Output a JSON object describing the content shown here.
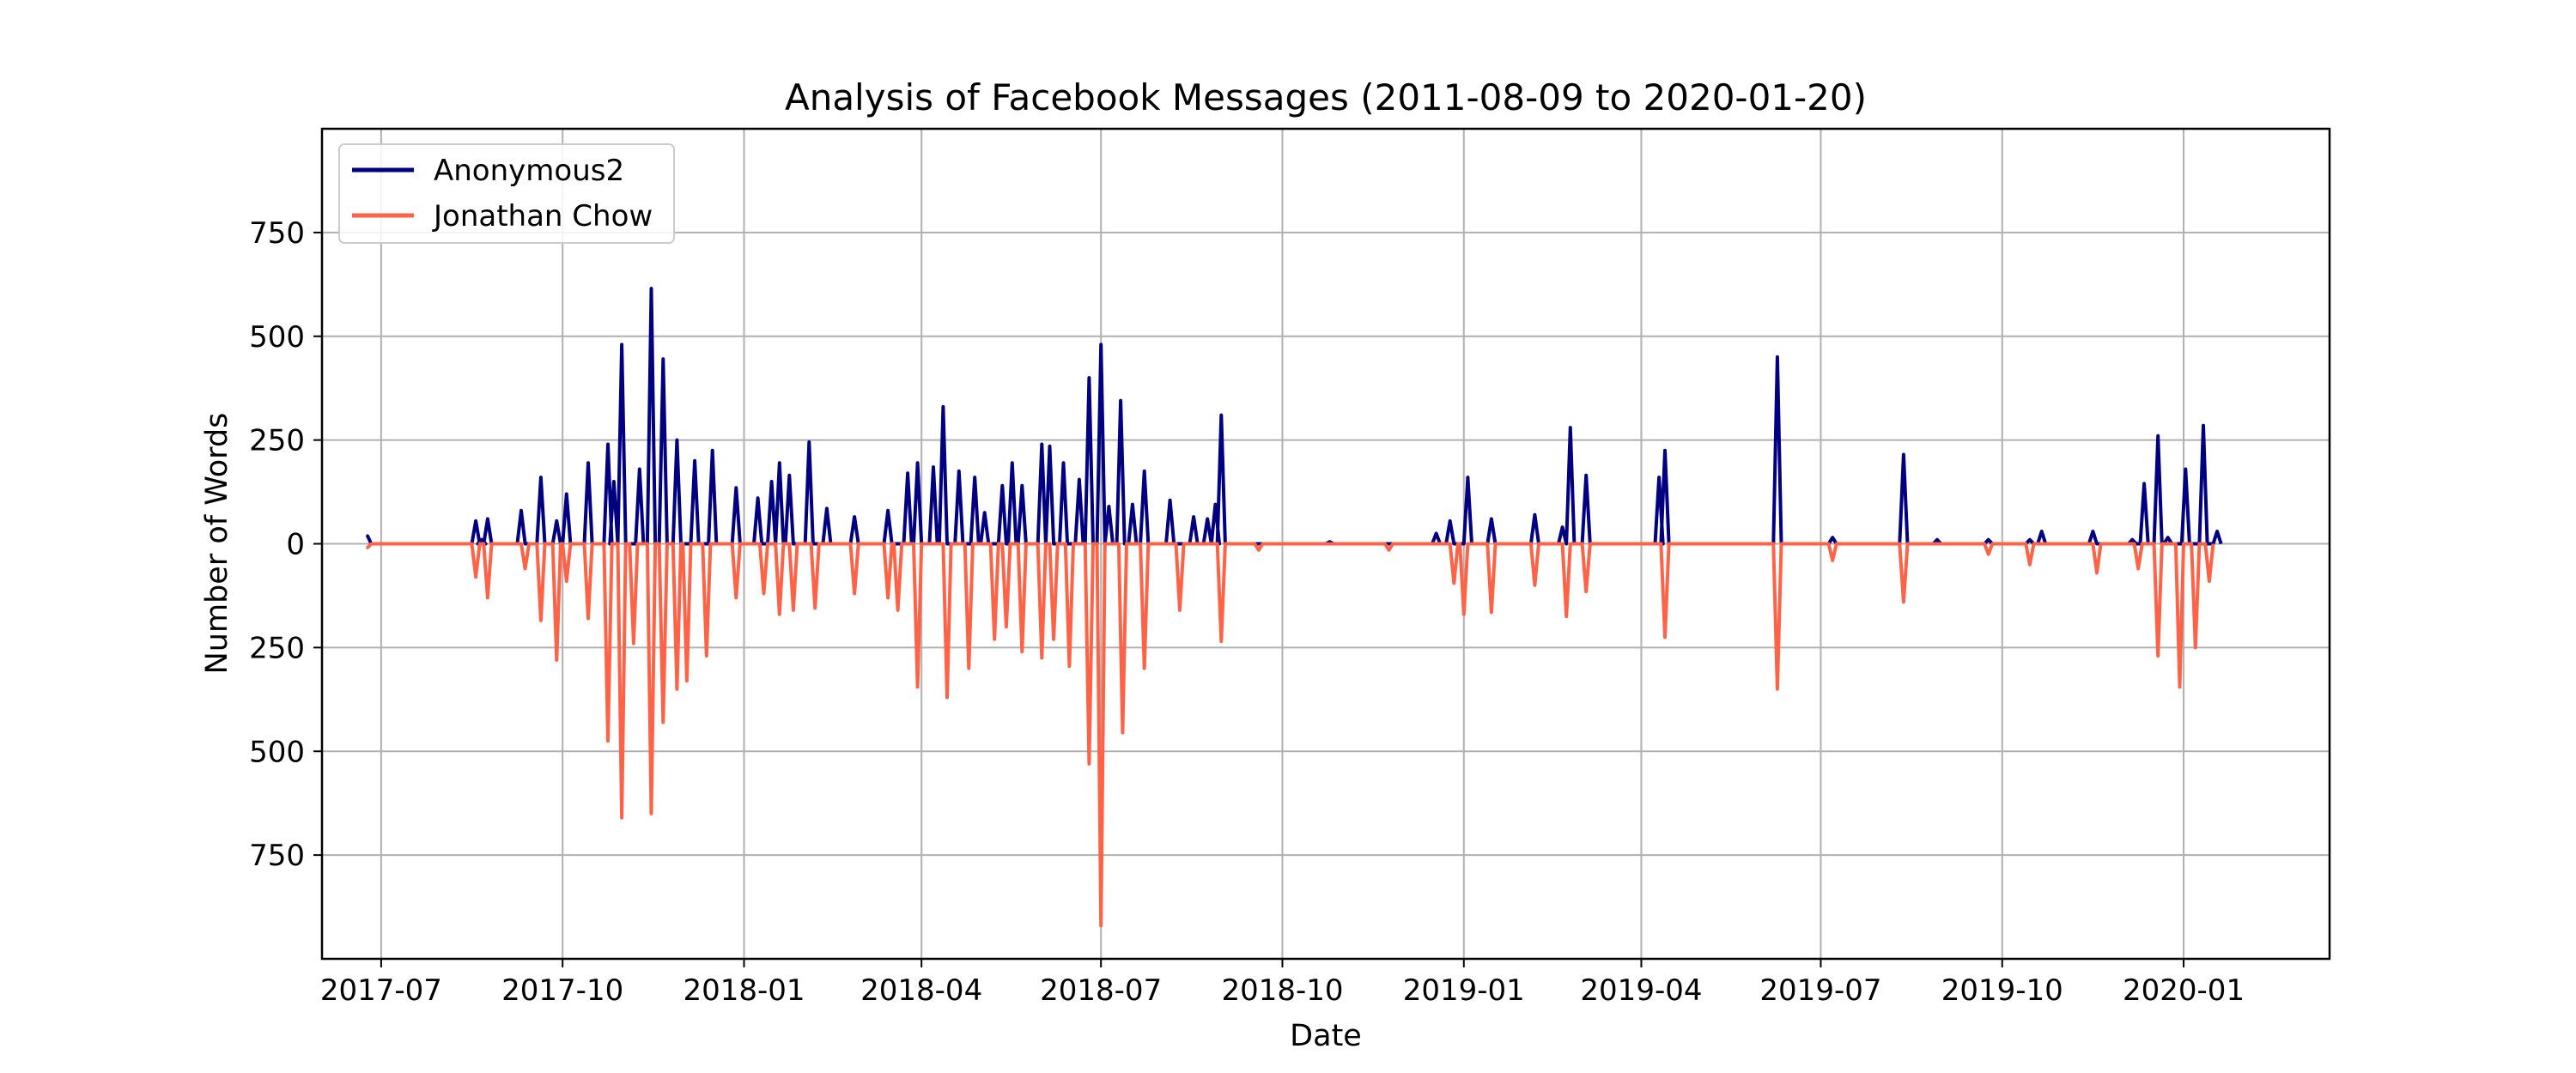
{
  "chart_data": {
    "type": "line",
    "title": "Analysis of Facebook Messages (2011-08-09 to 2020-01-20)",
    "xlabel": "Date",
    "ylabel": "Number of Words",
    "x_ticks": [
      "2017-07",
      "2017-10",
      "2018-01",
      "2018-04",
      "2018-07",
      "2018-10",
      "2019-01",
      "2019-04",
      "2019-07",
      "2019-10",
      "2020-01"
    ],
    "y_ticks": [
      {
        "value": 750,
        "label": "750"
      },
      {
        "value": 500,
        "label": "500"
      },
      {
        "value": 250,
        "label": "250"
      },
      {
        "value": 0,
        "label": "0"
      },
      {
        "value": -250,
        "label": "250"
      },
      {
        "value": -500,
        "label": "500"
      },
      {
        "value": -750,
        "label": "750"
      }
    ],
    "xlim": [
      "2017-06-01",
      "2020-03-15"
    ],
    "ylim": [
      -1000,
      1000
    ],
    "grid": true,
    "legend_position": "top-left",
    "series": [
      {
        "name": "Anonymous2",
        "color": "#000080",
        "points": [
          [
            "2017-06-24",
            20
          ],
          [
            "2017-08-18",
            55
          ],
          [
            "2017-08-21",
            10
          ],
          [
            "2017-08-24",
            60
          ],
          [
            "2017-09-10",
            80
          ],
          [
            "2017-09-20",
            160
          ],
          [
            "2017-09-28",
            55
          ],
          [
            "2017-10-03",
            120
          ],
          [
            "2017-10-14",
            195
          ],
          [
            "2017-10-24",
            240
          ],
          [
            "2017-10-27",
            150
          ],
          [
            "2017-10-31",
            480
          ],
          [
            "2017-11-09",
            180
          ],
          [
            "2017-11-15",
            615
          ],
          [
            "2017-11-21",
            445
          ],
          [
            "2017-11-28",
            250
          ],
          [
            "2017-12-07",
            200
          ],
          [
            "2017-12-16",
            225
          ],
          [
            "2017-12-28",
            135
          ],
          [
            "2018-01-08",
            110
          ],
          [
            "2018-01-15",
            150
          ],
          [
            "2018-01-19",
            195
          ],
          [
            "2018-01-24",
            165
          ],
          [
            "2018-02-03",
            245
          ],
          [
            "2018-02-12",
            85
          ],
          [
            "2018-02-26",
            65
          ],
          [
            "2018-03-15",
            80
          ],
          [
            "2018-03-25",
            170
          ],
          [
            "2018-03-30",
            195
          ],
          [
            "2018-04-07",
            185
          ],
          [
            "2018-04-12",
            330
          ],
          [
            "2018-04-20",
            175
          ],
          [
            "2018-04-28",
            160
          ],
          [
            "2018-05-03",
            75
          ],
          [
            "2018-05-12",
            140
          ],
          [
            "2018-05-17",
            195
          ],
          [
            "2018-05-22",
            140
          ],
          [
            "2018-06-01",
            240
          ],
          [
            "2018-06-05",
            235
          ],
          [
            "2018-06-12",
            195
          ],
          [
            "2018-06-20",
            155
          ],
          [
            "2018-06-25",
            400
          ],
          [
            "2018-07-01",
            480
          ],
          [
            "2018-07-05",
            90
          ],
          [
            "2018-07-11",
            345
          ],
          [
            "2018-07-17",
            95
          ],
          [
            "2018-07-23",
            175
          ],
          [
            "2018-08-05",
            105
          ],
          [
            "2018-08-17",
            65
          ],
          [
            "2018-08-24",
            60
          ],
          [
            "2018-08-28",
            95
          ],
          [
            "2018-08-31",
            310
          ],
          [
            "2018-10-25",
            5
          ],
          [
            "2018-12-18",
            25
          ],
          [
            "2018-12-25",
            55
          ],
          [
            "2019-01-03",
            160
          ],
          [
            "2019-01-15",
            60
          ],
          [
            "2019-02-06",
            70
          ],
          [
            "2019-02-20",
            40
          ],
          [
            "2019-02-24",
            280
          ],
          [
            "2019-03-04",
            165
          ],
          [
            "2019-04-10",
            160
          ],
          [
            "2019-04-13",
            225
          ],
          [
            "2019-06-09",
            450
          ],
          [
            "2019-07-07",
            15
          ],
          [
            "2019-08-12",
            215
          ],
          [
            "2019-08-29",
            10
          ],
          [
            "2019-09-24",
            10
          ],
          [
            "2019-10-15",
            10
          ],
          [
            "2019-10-21",
            30
          ],
          [
            "2019-11-16",
            30
          ],
          [
            "2019-12-06",
            10
          ],
          [
            "2019-12-12",
            145
          ],
          [
            "2019-12-19",
            260
          ],
          [
            "2019-12-24",
            15
          ],
          [
            "2020-01-02",
            180
          ],
          [
            "2020-01-11",
            285
          ],
          [
            "2020-01-18",
            30
          ]
        ]
      },
      {
        "name": "Jonathan Chow",
        "color": "#ff6347",
        "points": [
          [
            "2017-06-24",
            -10
          ],
          [
            "2017-08-18",
            -80
          ],
          [
            "2017-08-24",
            -130
          ],
          [
            "2017-09-12",
            -60
          ],
          [
            "2017-09-20",
            -185
          ],
          [
            "2017-09-28",
            -280
          ],
          [
            "2017-10-03",
            -90
          ],
          [
            "2017-10-14",
            -180
          ],
          [
            "2017-10-24",
            -475
          ],
          [
            "2017-10-31",
            -660
          ],
          [
            "2017-11-06",
            -240
          ],
          [
            "2017-11-15",
            -650
          ],
          [
            "2017-11-21",
            -430
          ],
          [
            "2017-11-28",
            -350
          ],
          [
            "2017-12-03",
            -330
          ],
          [
            "2017-12-13",
            -270
          ],
          [
            "2017-12-28",
            -130
          ],
          [
            "2018-01-11",
            -120
          ],
          [
            "2018-01-19",
            -170
          ],
          [
            "2018-01-26",
            -160
          ],
          [
            "2018-02-06",
            -155
          ],
          [
            "2018-02-26",
            -120
          ],
          [
            "2018-03-15",
            -130
          ],
          [
            "2018-03-20",
            -160
          ],
          [
            "2018-03-30",
            -345
          ],
          [
            "2018-04-14",
            -370
          ],
          [
            "2018-04-25",
            -300
          ],
          [
            "2018-05-08",
            -230
          ],
          [
            "2018-05-14",
            -200
          ],
          [
            "2018-05-22",
            -260
          ],
          [
            "2018-06-01",
            -275
          ],
          [
            "2018-06-07",
            -230
          ],
          [
            "2018-06-15",
            -295
          ],
          [
            "2018-06-25",
            -530
          ],
          [
            "2018-07-01",
            -920
          ],
          [
            "2018-07-12",
            -455
          ],
          [
            "2018-07-23",
            -300
          ],
          [
            "2018-08-10",
            -160
          ],
          [
            "2018-08-31",
            -235
          ],
          [
            "2018-09-19",
            -15
          ],
          [
            "2018-11-24",
            -15
          ],
          [
            "2018-12-27",
            -95
          ],
          [
            "2019-01-01",
            -170
          ],
          [
            "2019-01-15",
            -165
          ],
          [
            "2019-02-06",
            -100
          ],
          [
            "2019-02-22",
            -175
          ],
          [
            "2019-03-04",
            -115
          ],
          [
            "2019-04-13",
            -225
          ],
          [
            "2019-06-09",
            -350
          ],
          [
            "2019-07-07",
            -40
          ],
          [
            "2019-08-12",
            -140
          ],
          [
            "2019-09-24",
            -25
          ],
          [
            "2019-10-15",
            -50
          ],
          [
            "2019-11-18",
            -70
          ],
          [
            "2019-12-09",
            -60
          ],
          [
            "2019-12-19",
            -270
          ],
          [
            "2019-12-30",
            -345
          ],
          [
            "2020-01-07",
            -250
          ],
          [
            "2020-01-14",
            -90
          ]
        ]
      }
    ]
  }
}
